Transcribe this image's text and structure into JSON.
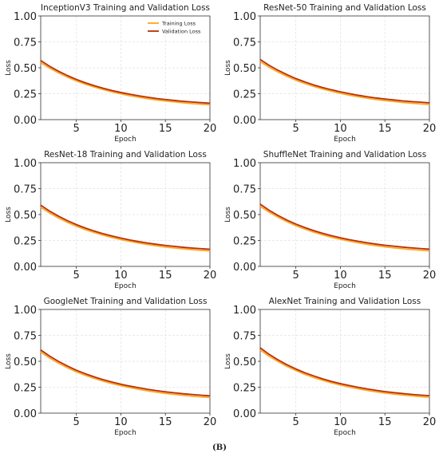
{
  "figure_label": "(B)",
  "colors": {
    "training": "#FFA51F",
    "validation": "#B8300A",
    "grid": "#e3e3e3",
    "axis": "#333333"
  },
  "chart_data": [
    {
      "type": "line",
      "title": "InceptionV3 Training and Validation Loss",
      "xlabel": "Epoch",
      "ylabel": "Loss",
      "xlim": [
        1,
        20
      ],
      "ylim": [
        0,
        1
      ],
      "xticks": [
        5,
        10,
        15,
        20
      ],
      "yticks": [
        0.0,
        0.25,
        0.5,
        0.75,
        1.0
      ],
      "ytick_labels": [
        "0.00",
        "0.25",
        "0.50",
        "0.75",
        "1.00"
      ],
      "grid": true,
      "legend": "top-right",
      "x": [
        1,
        2,
        3,
        4,
        5,
        6,
        7,
        8,
        9,
        10,
        11,
        12,
        13,
        14,
        15,
        16,
        17,
        18,
        19,
        20
      ],
      "series": [
        {
          "name": "Training Loss",
          "values": [
            0.55,
            0.497,
            0.451,
            0.41,
            0.374,
            0.342,
            0.315,
            0.29,
            0.268,
            0.249,
            0.231,
            0.216,
            0.202,
            0.19,
            0.18,
            0.171,
            0.163,
            0.155,
            0.149,
            0.143
          ]
        },
        {
          "name": "Validation Loss",
          "values": [
            0.57,
            0.514,
            0.467,
            0.425,
            0.388,
            0.356,
            0.328,
            0.303,
            0.281,
            0.262,
            0.245,
            0.23,
            0.216,
            0.204,
            0.194,
            0.185,
            0.177,
            0.17,
            0.164,
            0.158
          ]
        }
      ]
    },
    {
      "type": "line",
      "title": "ResNet-50 Training and Validation Loss",
      "xlabel": "Epoch",
      "ylabel": "Loss",
      "xlim": [
        1,
        20
      ],
      "ylim": [
        0,
        1
      ],
      "xticks": [
        5,
        10,
        15,
        20
      ],
      "yticks": [
        0.0,
        0.25,
        0.5,
        0.75,
        1.0
      ],
      "ytick_labels": [
        "0.00",
        "0.25",
        "0.50",
        "0.75",
        "1.00"
      ],
      "grid": true,
      "x": [
        1,
        2,
        3,
        4,
        5,
        6,
        7,
        8,
        9,
        10,
        11,
        12,
        13,
        14,
        15,
        16,
        17,
        18,
        19,
        20
      ],
      "series": [
        {
          "name": "Training Loss",
          "values": [
            0.56,
            0.506,
            0.459,
            0.418,
            0.381,
            0.349,
            0.321,
            0.296,
            0.274,
            0.254,
            0.236,
            0.221,
            0.207,
            0.194,
            0.184,
            0.175,
            0.166,
            0.159,
            0.152,
            0.146
          ]
        },
        {
          "name": "Validation Loss",
          "values": [
            0.58,
            0.524,
            0.476,
            0.434,
            0.396,
            0.364,
            0.335,
            0.31,
            0.288,
            0.268,
            0.251,
            0.235,
            0.221,
            0.209,
            0.199,
            0.19,
            0.181,
            0.174,
            0.168,
            0.162
          ]
        }
      ]
    },
    {
      "type": "line",
      "title": "ResNet-18 Training and Validation Loss",
      "xlabel": "Epoch",
      "ylabel": "Loss",
      "xlim": [
        1,
        20
      ],
      "ylim": [
        0,
        1
      ],
      "xticks": [
        5,
        10,
        15,
        20
      ],
      "yticks": [
        0.0,
        0.25,
        0.5,
        0.75,
        1.0
      ],
      "ytick_labels": [
        "0.00",
        "0.25",
        "0.50",
        "0.75",
        "1.00"
      ],
      "grid": true,
      "x": [
        1,
        2,
        3,
        4,
        5,
        6,
        7,
        8,
        9,
        10,
        11,
        12,
        13,
        14,
        15,
        16,
        17,
        18,
        19,
        20
      ],
      "series": [
        {
          "name": "Training Loss",
          "values": [
            0.57,
            0.515,
            0.467,
            0.425,
            0.388,
            0.355,
            0.327,
            0.302,
            0.279,
            0.259,
            0.241,
            0.225,
            0.211,
            0.198,
            0.187,
            0.178,
            0.169,
            0.162,
            0.155,
            0.149
          ]
        },
        {
          "name": "Validation Loss",
          "values": [
            0.59,
            0.533,
            0.484,
            0.441,
            0.403,
            0.37,
            0.341,
            0.315,
            0.293,
            0.273,
            0.255,
            0.239,
            0.225,
            0.213,
            0.202,
            0.193,
            0.184,
            0.177,
            0.171,
            0.165
          ]
        }
      ]
    },
    {
      "type": "line",
      "title": "ShuffleNet Training and Validation Loss",
      "xlabel": "Epoch",
      "ylabel": "Loss",
      "xlim": [
        1,
        20
      ],
      "ylim": [
        0,
        1
      ],
      "xticks": [
        5,
        10,
        15,
        20
      ],
      "yticks": [
        0.0,
        0.25,
        0.5,
        0.75,
        1.0
      ],
      "ytick_labels": [
        "0.00",
        "0.25",
        "0.50",
        "0.75",
        "1.00"
      ],
      "grid": true,
      "x": [
        1,
        2,
        3,
        4,
        5,
        6,
        7,
        8,
        9,
        10,
        11,
        12,
        13,
        14,
        15,
        16,
        17,
        18,
        19,
        20
      ],
      "series": [
        {
          "name": "Training Loss",
          "values": [
            0.58,
            0.523,
            0.474,
            0.431,
            0.393,
            0.36,
            0.331,
            0.305,
            0.282,
            0.262,
            0.244,
            0.228,
            0.213,
            0.2,
            0.189,
            0.179,
            0.17,
            0.163,
            0.156,
            0.15
          ]
        },
        {
          "name": "Validation Loss",
          "values": [
            0.6,
            0.541,
            0.491,
            0.447,
            0.408,
            0.375,
            0.345,
            0.319,
            0.296,
            0.276,
            0.258,
            0.242,
            0.228,
            0.215,
            0.204,
            0.195,
            0.186,
            0.179,
            0.172,
            0.166
          ]
        }
      ]
    },
    {
      "type": "line",
      "title": "GoogleNet Training and Validation Loss",
      "xlabel": "Epoch",
      "ylabel": "Loss",
      "xlim": [
        1,
        20
      ],
      "ylim": [
        0,
        1
      ],
      "xticks": [
        5,
        10,
        15,
        20
      ],
      "yticks": [
        0.0,
        0.25,
        0.5,
        0.75,
        1.0
      ],
      "ytick_labels": [
        "0.00",
        "0.25",
        "0.50",
        "0.75",
        "1.00"
      ],
      "grid": true,
      "x": [
        1,
        2,
        3,
        4,
        5,
        6,
        7,
        8,
        9,
        10,
        11,
        12,
        13,
        14,
        15,
        16,
        17,
        18,
        19,
        20
      ],
      "series": [
        {
          "name": "Training Loss",
          "values": [
            0.59,
            0.532,
            0.482,
            0.438,
            0.399,
            0.365,
            0.335,
            0.309,
            0.286,
            0.265,
            0.247,
            0.23,
            0.215,
            0.202,
            0.191,
            0.181,
            0.172,
            0.164,
            0.157,
            0.151
          ]
        },
        {
          "name": "Validation Loss",
          "values": [
            0.61,
            0.55,
            0.499,
            0.454,
            0.414,
            0.38,
            0.35,
            0.323,
            0.3,
            0.279,
            0.261,
            0.245,
            0.23,
            0.217,
            0.206,
            0.196,
            0.187,
            0.18,
            0.173,
            0.167
          ]
        }
      ]
    },
    {
      "type": "line",
      "title": "AlexNet Training and Validation Loss",
      "xlabel": "Epoch",
      "ylabel": "Loss",
      "xlim": [
        1,
        20
      ],
      "ylim": [
        0,
        1
      ],
      "xticks": [
        5,
        10,
        15,
        20
      ],
      "yticks": [
        0.0,
        0.25,
        0.5,
        0.75,
        1.0
      ],
      "ytick_labels": [
        "0.00",
        "0.25",
        "0.50",
        "0.75",
        "1.00"
      ],
      "grid": true,
      "x": [
        1,
        2,
        3,
        4,
        5,
        6,
        7,
        8,
        9,
        10,
        11,
        12,
        13,
        14,
        15,
        16,
        17,
        18,
        19,
        20
      ],
      "series": [
        {
          "name": "Training Loss",
          "values": [
            0.61,
            0.549,
            0.497,
            0.451,
            0.411,
            0.375,
            0.344,
            0.317,
            0.292,
            0.271,
            0.252,
            0.235,
            0.219,
            0.206,
            0.194,
            0.184,
            0.175,
            0.167,
            0.159,
            0.153
          ]
        },
        {
          "name": "Validation Loss",
          "values": [
            0.63,
            0.567,
            0.514,
            0.467,
            0.426,
            0.39,
            0.359,
            0.331,
            0.306,
            0.285,
            0.266,
            0.249,
            0.234,
            0.22,
            0.208,
            0.198,
            0.189,
            0.181,
            0.174,
            0.168
          ]
        }
      ]
    }
  ]
}
